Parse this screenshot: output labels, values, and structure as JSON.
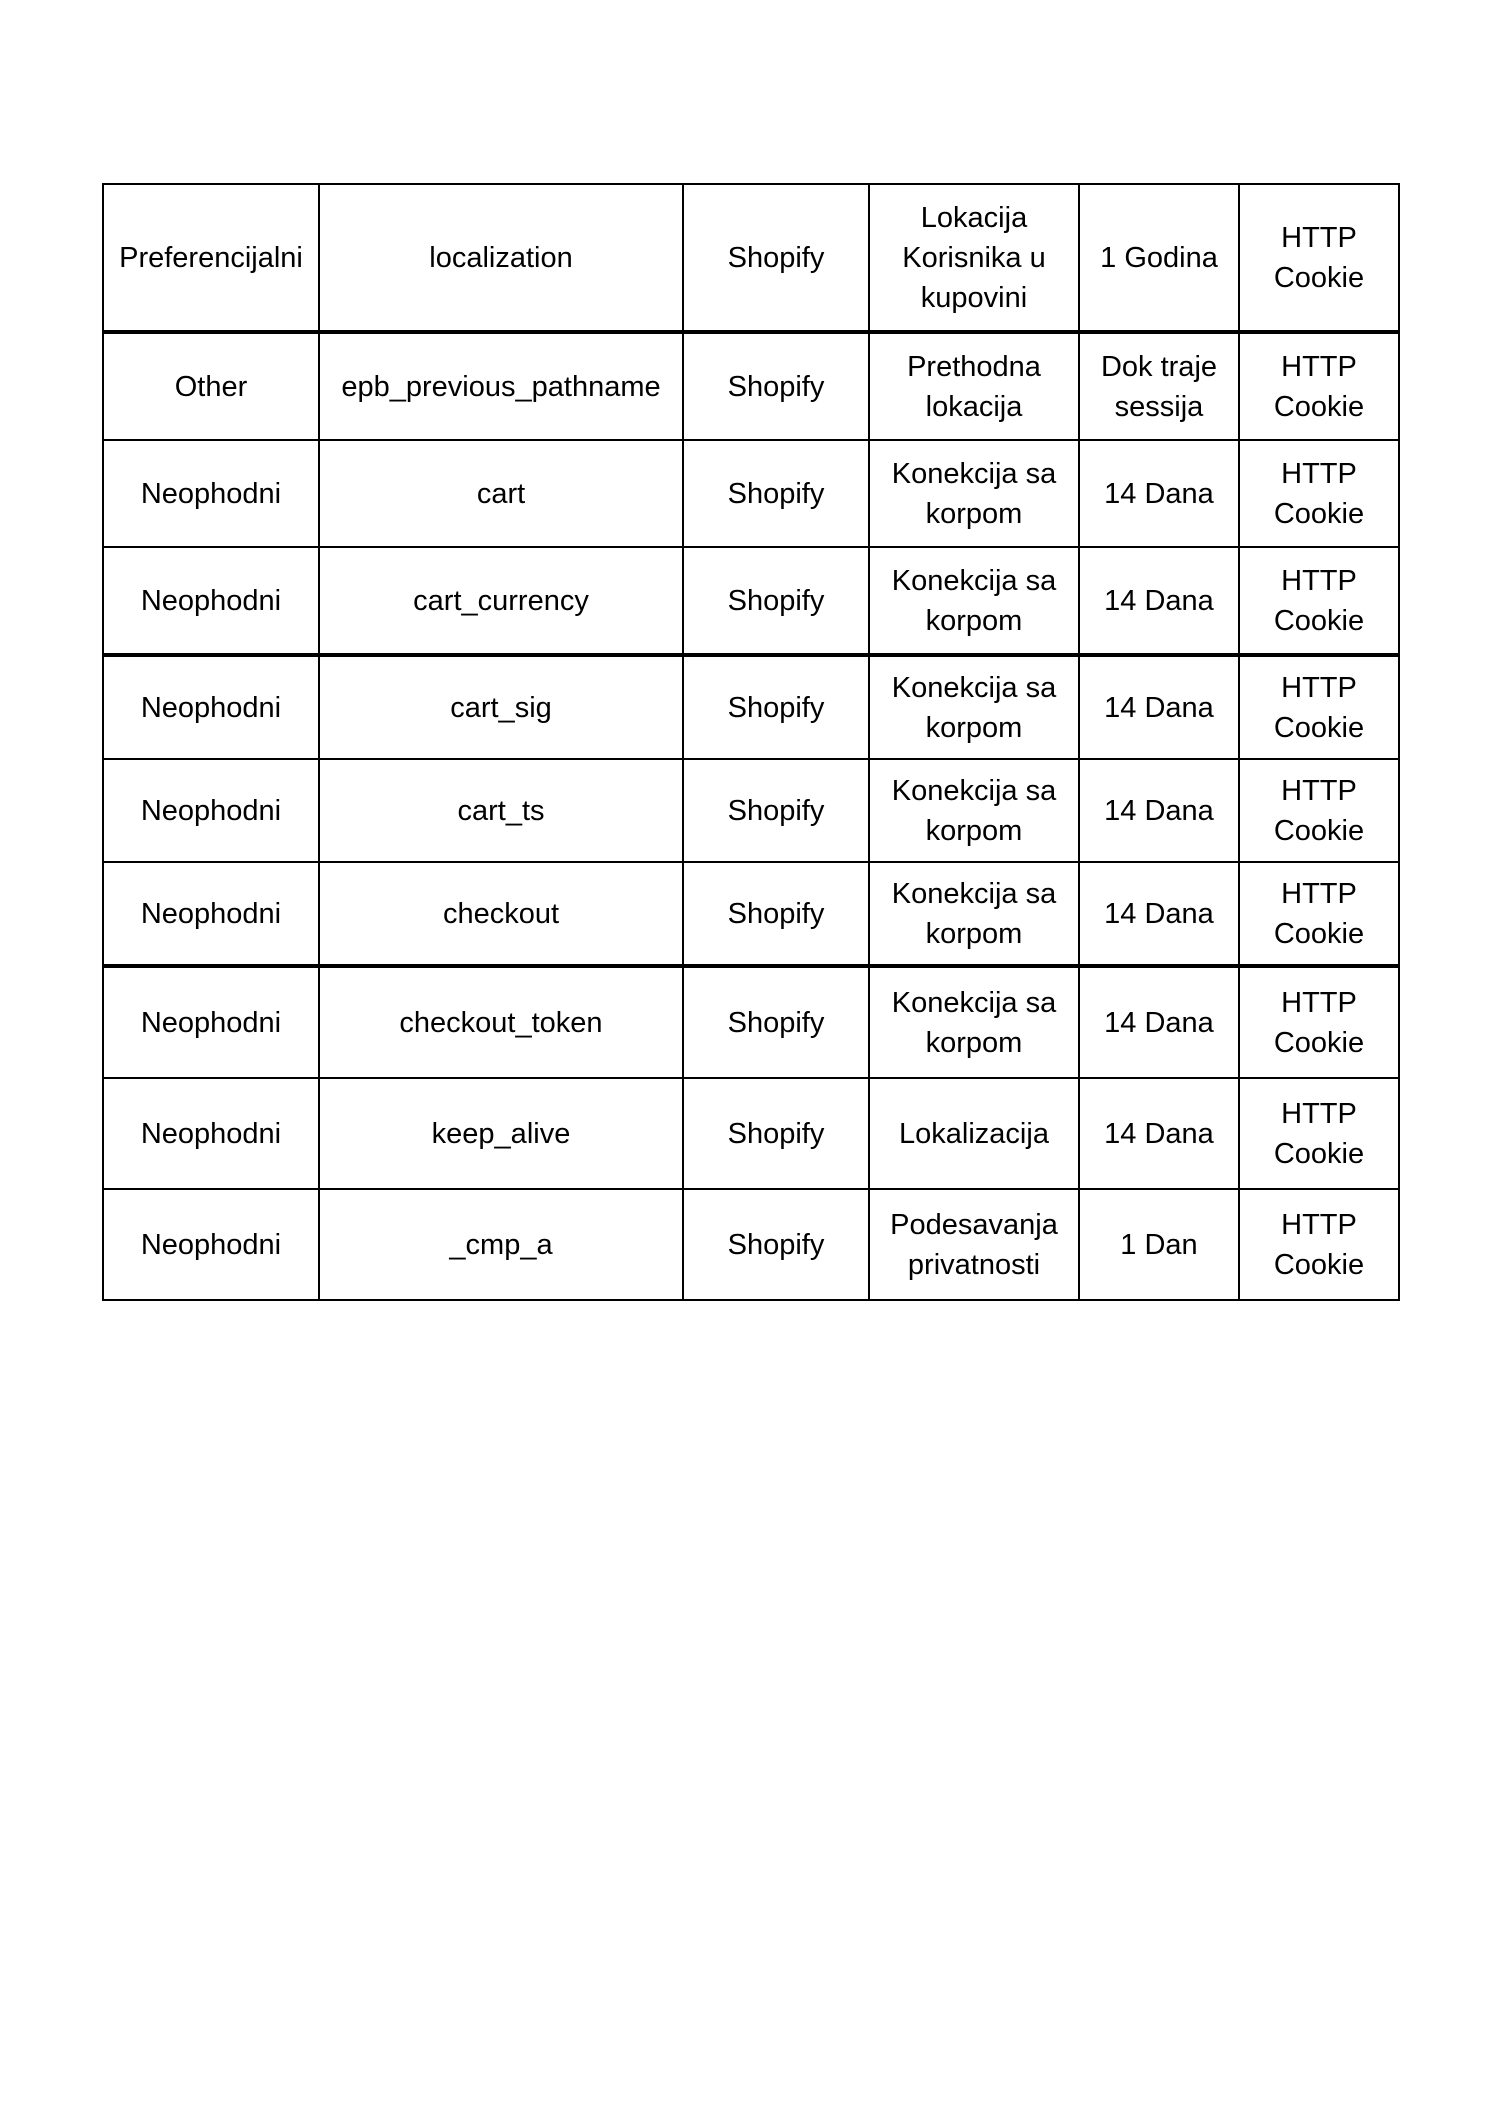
{
  "colors": {
    "background": "#ffffff",
    "text": "#000000",
    "border": "#000000"
  },
  "table": {
    "fields": [
      "category",
      "name",
      "provider",
      "purpose",
      "duration",
      "type"
    ],
    "groups": [
      {
        "rows": [
          {
            "category": "Preferencijalni",
            "name": "localization",
            "provider": "Shopify",
            "purpose": "Lokacija Korisnika u kupovini",
            "duration": "1 Godina",
            "type": "HTTP Cookie"
          }
        ]
      },
      {
        "rows": [
          {
            "category": "Other",
            "name": "epb_previous_pathname",
            "provider": "Shopify",
            "purpose": "Prethodna lokacija",
            "duration": "Dok traje sessija",
            "type": "HTTP Cookie"
          },
          {
            "category": "Neophodni",
            "name": "cart",
            "provider": "Shopify",
            "purpose": "Konekcija sa korpom",
            "duration": "14 Dana",
            "type": "HTTP Cookie"
          },
          {
            "category": "Neophodni",
            "name": "cart_currency",
            "provider": "Shopify",
            "purpose": "Konekcija sa korpom",
            "duration": "14 Dana",
            "type": "HTTP Cookie"
          }
        ]
      },
      {
        "rows": [
          {
            "category": "Neophodni",
            "name": "cart_sig",
            "provider": "Shopify",
            "purpose": "Konekcija sa korpom",
            "duration": "14 Dana",
            "type": "HTTP Cookie"
          },
          {
            "category": "Neophodni",
            "name": "cart_ts",
            "provider": "Shopify",
            "purpose": "Konekcija sa korpom",
            "duration": "14 Dana",
            "type": "HTTP Cookie"
          },
          {
            "category": "Neophodni",
            "name": "checkout",
            "provider": "Shopify",
            "purpose": "Konekcija sa korpom",
            "duration": "14 Dana",
            "type": "HTTP Cookie"
          }
        ]
      },
      {
        "rows": [
          {
            "category": "Neophodni",
            "name": "checkout_token",
            "provider": "Shopify",
            "purpose": "Konekcija sa korpom",
            "duration": "14 Dana",
            "type": "HTTP Cookie"
          },
          {
            "category": "Neophodni",
            "name": "keep_alive",
            "provider": "Shopify",
            "purpose": "Lokalizacija",
            "duration": "14 Dana",
            "type": "HTTP Cookie"
          },
          {
            "category": "Neophodni",
            "name": "_cmp_a",
            "provider": "Shopify",
            "purpose": "Podesavanja privatnosti",
            "duration": "1 Dan",
            "type": "HTTP Cookie"
          }
        ]
      }
    ]
  }
}
